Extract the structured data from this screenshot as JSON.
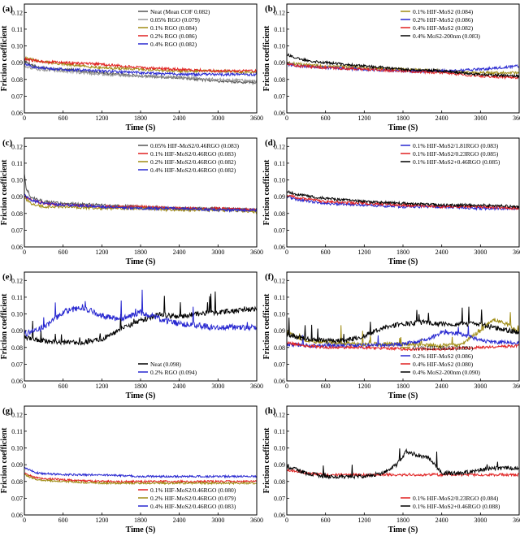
{
  "figure": {
    "background": "#ffffff"
  },
  "chart_data": [
    {
      "panel": "(a)",
      "type": "line",
      "xlabel": "Time (S)",
      "ylabel": "Friction coefficient",
      "xlim": [
        0,
        3600
      ],
      "ylim": [
        0.06,
        0.125
      ],
      "xticks": [
        0,
        600,
        1200,
        1800,
        2400,
        3000,
        3600
      ],
      "yticks": [
        0.06,
        0.07,
        0.08,
        0.09,
        0.1,
        0.11,
        0.12
      ],
      "legend_position": "top-right",
      "series": [
        {
          "name": "Neat (Mean COF 0.082)",
          "color": "#555555",
          "x": [
            0,
            200,
            600,
            1200,
            1800,
            2400,
            3000,
            3600
          ],
          "y": [
            0.091,
            0.087,
            0.086,
            0.084,
            0.082,
            0.081,
            0.079,
            0.078
          ],
          "noise": 0.0008
        },
        {
          "name": "0.05%  RGO (0.079)",
          "color": "#999999",
          "x": [
            0,
            200,
            600,
            1200,
            1800,
            2400,
            3000,
            3600
          ],
          "y": [
            0.088,
            0.086,
            0.085,
            0.083,
            0.082,
            0.081,
            0.08,
            0.079
          ],
          "noise": 0.0008
        },
        {
          "name": "0.1%  RGO (0.084)",
          "color": "#a08c14",
          "x": [
            0,
            200,
            600,
            1200,
            1800,
            2400,
            3000,
            3600
          ],
          "y": [
            0.093,
            0.091,
            0.089,
            0.087,
            0.086,
            0.085,
            0.085,
            0.084
          ],
          "noise": 0.0008
        },
        {
          "name": "0.2%  RGO (0.086)",
          "color": "#e02020",
          "x": [
            0,
            200,
            600,
            1200,
            1800,
            2400,
            3000,
            3600
          ],
          "y": [
            0.092,
            0.091,
            0.09,
            0.089,
            0.087,
            0.086,
            0.085,
            0.085
          ],
          "noise": 0.0008
        },
        {
          "name": "0.4%  RGO (0.082)",
          "color": "#2828d0",
          "x": [
            0,
            200,
            600,
            1200,
            1800,
            2400,
            3000,
            3600
          ],
          "y": [
            0.089,
            0.087,
            0.086,
            0.085,
            0.084,
            0.083,
            0.083,
            0.083
          ],
          "noise": 0.0008
        }
      ]
    },
    {
      "panel": "(b)",
      "type": "line",
      "xlabel": "Time (S)",
      "ylabel": "Friction coefficient",
      "xlim": [
        0,
        3600
      ],
      "ylim": [
        0.06,
        0.125
      ],
      "xticks": [
        0,
        600,
        1200,
        1800,
        2400,
        3000,
        3600
      ],
      "yticks": [
        0.06,
        0.07,
        0.08,
        0.09,
        0.1,
        0.11,
        0.12
      ],
      "legend_position": "top-right",
      "series": [
        {
          "name": "0.1% HIF-MoS2 (0.084)",
          "color": "#a08c14",
          "x": [
            0,
            200,
            600,
            1200,
            1800,
            2400,
            3000,
            3600
          ],
          "y": [
            0.09,
            0.089,
            0.088,
            0.087,
            0.086,
            0.085,
            0.084,
            0.084
          ],
          "noise": 0.0008
        },
        {
          "name": "0.2% HIF-MoS2 (0.086)",
          "color": "#2828d0",
          "x": [
            0,
            200,
            600,
            1200,
            1800,
            2400,
            3000,
            3600
          ],
          "y": [
            0.089,
            0.088,
            0.087,
            0.086,
            0.085,
            0.085,
            0.086,
            0.088
          ],
          "noise": 0.0008
        },
        {
          "name": "0.4% HIF-MoS2 (0.082)",
          "color": "#e02020",
          "x": [
            0,
            200,
            600,
            1200,
            1800,
            2400,
            3000,
            3600
          ],
          "y": [
            0.089,
            0.088,
            0.087,
            0.086,
            0.085,
            0.084,
            0.082,
            0.081
          ],
          "noise": 0.0008
        },
        {
          "name": "0.4% MoS2-200nm (0.083)",
          "color": "#000000",
          "x": [
            0,
            200,
            600,
            1200,
            1800,
            2400,
            3000,
            3600
          ],
          "y": [
            0.095,
            0.092,
            0.09,
            0.088,
            0.086,
            0.085,
            0.083,
            0.082
          ],
          "noise": 0.0008
        }
      ]
    },
    {
      "panel": "(c)",
      "type": "line",
      "xlabel": "Time (S)",
      "ylabel": "Friction coefficient",
      "xlim": [
        0,
        3600
      ],
      "ylim": [
        0.06,
        0.125
      ],
      "xticks": [
        0,
        600,
        1200,
        1800,
        2400,
        3000,
        3600
      ],
      "yticks": [
        0.06,
        0.07,
        0.08,
        0.09,
        0.1,
        0.11,
        0.12
      ],
      "legend_position": "top-right",
      "series": [
        {
          "name": "0.05% HIF-MoS2/0.46RGO (0.083)",
          "color": "#555555",
          "x": [
            0,
            30,
            100,
            300,
            600,
            1200,
            1800,
            2400,
            3000,
            3600
          ],
          "y": [
            0.104,
            0.095,
            0.09,
            0.087,
            0.086,
            0.085,
            0.084,
            0.083,
            0.083,
            0.082
          ],
          "noise": 0.0008
        },
        {
          "name": "0.1% HIF-MoS2/0.46RGO (0.083)",
          "color": "#e02020",
          "x": [
            0,
            100,
            300,
            600,
            1200,
            1800,
            2400,
            3000,
            3600
          ],
          "y": [
            0.09,
            0.088,
            0.086,
            0.085,
            0.084,
            0.084,
            0.083,
            0.083,
            0.082
          ],
          "noise": 0.0008
        },
        {
          "name": "0.2% HIF-MoS2/0.46RGO (0.082)",
          "color": "#a08c14",
          "x": [
            0,
            100,
            300,
            600,
            1200,
            1800,
            2400,
            3000,
            3600
          ],
          "y": [
            0.089,
            0.086,
            0.084,
            0.084,
            0.083,
            0.083,
            0.082,
            0.082,
            0.081
          ],
          "noise": 0.0008
        },
        {
          "name": "0.4% HIF-MoS2/0.46RGO (0.082)",
          "color": "#2828d0",
          "x": [
            0,
            100,
            300,
            600,
            1200,
            1800,
            2400,
            3000,
            3600
          ],
          "y": [
            0.091,
            0.088,
            0.086,
            0.085,
            0.084,
            0.083,
            0.083,
            0.082,
            0.082
          ],
          "noise": 0.0008
        }
      ]
    },
    {
      "panel": "(d)",
      "type": "line",
      "xlabel": "Time (S)",
      "ylabel": "Friction coefficient",
      "xlim": [
        0,
        3600
      ],
      "ylim": [
        0.06,
        0.125
      ],
      "xticks": [
        0,
        600,
        1200,
        1800,
        2400,
        3000,
        3600
      ],
      "yticks": [
        0.06,
        0.07,
        0.08,
        0.09,
        0.1,
        0.11,
        0.12
      ],
      "legend_position": "top-right",
      "series": [
        {
          "name": "0.1% HIF-MoS2/1.81RGO (0.083)",
          "color": "#2828d0",
          "x": [
            0,
            200,
            600,
            1200,
            1800,
            2400,
            3000,
            3600
          ],
          "y": [
            0.09,
            0.088,
            0.086,
            0.085,
            0.084,
            0.084,
            0.083,
            0.083
          ],
          "noise": 0.0008
        },
        {
          "name": "0.1% HIF-MoS2/0.23RGO (0.085)",
          "color": "#e02020",
          "x": [
            0,
            200,
            600,
            1200,
            1800,
            2400,
            3000,
            3600
          ],
          "y": [
            0.091,
            0.089,
            0.087,
            0.086,
            0.085,
            0.084,
            0.084,
            0.083
          ],
          "noise": 0.0008
        },
        {
          "name": "0.1% HIF-MoS2+0.46RGO (0.085)",
          "color": "#000000",
          "x": [
            0,
            200,
            600,
            1200,
            1800,
            2400,
            3000,
            3600
          ],
          "y": [
            0.093,
            0.091,
            0.089,
            0.087,
            0.086,
            0.085,
            0.085,
            0.084
          ],
          "noise": 0.0008
        }
      ]
    },
    {
      "panel": "(e)",
      "type": "line",
      "xlabel": "Time (S)",
      "ylabel": "Friction coefficient",
      "xlim": [
        0,
        3600
      ],
      "ylim": [
        0.06,
        0.125
      ],
      "xticks": [
        0,
        600,
        1200,
        1800,
        2400,
        3000,
        3600
      ],
      "yticks": [
        0.06,
        0.07,
        0.08,
        0.09,
        0.1,
        0.11,
        0.12
      ],
      "legend_position": "bottom-right",
      "series": [
        {
          "name": "Neat (0.098)",
          "color": "#000000",
          "x": [
            0,
            300,
            600,
            900,
            1200,
            1500,
            1800,
            2100,
            2400,
            2700,
            3000,
            3300,
            3600
          ],
          "y": [
            0.086,
            0.084,
            0.083,
            0.083,
            0.085,
            0.091,
            0.096,
            0.1,
            0.098,
            0.1,
            0.101,
            0.102,
            0.103
          ],
          "noise": 0.0015
        },
        {
          "name": "0.2%  RGO (0.094)",
          "color": "#2828d0",
          "x": [
            0,
            300,
            600,
            900,
            1200,
            1500,
            1800,
            2100,
            2400,
            2700,
            3000,
            3300,
            3600
          ],
          "y": [
            0.088,
            0.092,
            0.101,
            0.104,
            0.099,
            0.097,
            0.101,
            0.097,
            0.094,
            0.093,
            0.092,
            0.092,
            0.092
          ],
          "noise": 0.0018
        }
      ]
    },
    {
      "panel": "(f)",
      "type": "line",
      "xlabel": "Time (S)",
      "ylabel": "Friction coefficient",
      "xlim": [
        0,
        3600
      ],
      "ylim": [
        0.06,
        0.125
      ],
      "xticks": [
        0,
        600,
        1200,
        1800,
        2400,
        3000,
        3600
      ],
      "yticks": [
        0.06,
        0.07,
        0.08,
        0.09,
        0.1,
        0.11,
        0.12
      ],
      "legend_position": "bottom-right",
      "series": [
        {
          "name": "0.1% HIF-MoS2 (0.091)",
          "color": "#a08c14",
          "x": [
            0,
            300,
            600,
            1200,
            1800,
            2400,
            2700,
            3000,
            3200,
            3400,
            3600
          ],
          "y": [
            0.089,
            0.084,
            0.083,
            0.082,
            0.082,
            0.081,
            0.082,
            0.09,
            0.097,
            0.094,
            0.089
          ],
          "noise": 0.0012
        },
        {
          "name": "0.2% HIF-MoS2 (0.086)",
          "color": "#2828d0",
          "x": [
            0,
            300,
            600,
            1200,
            1800,
            2200,
            2400,
            2700,
            3000,
            3300,
            3600
          ],
          "y": [
            0.082,
            0.081,
            0.081,
            0.081,
            0.082,
            0.085,
            0.089,
            0.088,
            0.084,
            0.083,
            0.083
          ],
          "noise": 0.0012
        },
        {
          "name": "0.4% HIF-MoS2 (0.080)",
          "color": "#e02020",
          "x": [
            0,
            300,
            600,
            1200,
            1800,
            2400,
            3000,
            3600
          ],
          "y": [
            0.083,
            0.081,
            0.08,
            0.08,
            0.079,
            0.079,
            0.08,
            0.081
          ],
          "noise": 0.0008
        },
        {
          "name": "0.4% MoS2-200nm (0.090)",
          "color": "#000000",
          "x": [
            0,
            300,
            600,
            900,
            1200,
            1500,
            1800,
            2100,
            2400,
            2700,
            3000,
            3300,
            3600
          ],
          "y": [
            0.088,
            0.085,
            0.084,
            0.084,
            0.087,
            0.092,
            0.094,
            0.095,
            0.094,
            0.094,
            0.094,
            0.091,
            0.089
          ],
          "noise": 0.0015
        }
      ]
    },
    {
      "panel": "(g)",
      "type": "line",
      "xlabel": "Time (S)",
      "ylabel": "Friction coefficient",
      "xlim": [
        0,
        3600
      ],
      "ylim": [
        0.06,
        0.125
      ],
      "xticks": [
        0,
        600,
        1200,
        1800,
        2400,
        3000,
        3600
      ],
      "yticks": [
        0.06,
        0.07,
        0.08,
        0.09,
        0.1,
        0.11,
        0.12
      ],
      "legend_position": "bottom-right",
      "series": [
        {
          "name": "0.1% HIF-MoS2/0.46RGO (0.080)",
          "color": "#e02020",
          "x": [
            0,
            200,
            600,
            1200,
            1800,
            2400,
            3000,
            3600
          ],
          "y": [
            0.085,
            0.082,
            0.081,
            0.08,
            0.08,
            0.08,
            0.08,
            0.08
          ],
          "noise": 0.0006
        },
        {
          "name": "0.2% HIF-MoS2/0.46RGO (0.079)",
          "color": "#a08c14",
          "x": [
            0,
            200,
            600,
            1200,
            1800,
            2400,
            3000,
            3600
          ],
          "y": [
            0.084,
            0.081,
            0.08,
            0.079,
            0.079,
            0.079,
            0.079,
            0.079
          ],
          "noise": 0.0006
        },
        {
          "name": "0.4% HIF-MoS2/0.46RGO (0.083)",
          "color": "#2828d0",
          "x": [
            0,
            200,
            600,
            1200,
            1800,
            2400,
            3000,
            3600
          ],
          "y": [
            0.088,
            0.085,
            0.084,
            0.084,
            0.083,
            0.083,
            0.083,
            0.083
          ],
          "noise": 0.0006
        }
      ]
    },
    {
      "panel": "(h)",
      "type": "line",
      "xlabel": "Time (S)",
      "ylabel": "Friction coefficient",
      "xlim": [
        0,
        3600
      ],
      "ylim": [
        0.06,
        0.125
      ],
      "xticks": [
        0,
        600,
        1200,
        1800,
        2400,
        3000,
        3600
      ],
      "yticks": [
        0.06,
        0.07,
        0.08,
        0.09,
        0.1,
        0.11,
        0.12
      ],
      "legend_position": "bottom-right",
      "series": [
        {
          "name": "0.1% HIF-MoS2/0.23RGO (0.084)",
          "color": "#e02020",
          "x": [
            0,
            300,
            600,
            1200,
            1800,
            2400,
            3000,
            3600
          ],
          "y": [
            0.087,
            0.085,
            0.084,
            0.084,
            0.084,
            0.084,
            0.084,
            0.084
          ],
          "noise": 0.0008
        },
        {
          "name": "0.1% HIF-MoS2+0.46RGO (0.088)",
          "color": "#000000",
          "x": [
            0,
            300,
            600,
            900,
            1200,
            1500,
            1700,
            1850,
            2000,
            2200,
            2400,
            2700,
            3000,
            3300,
            3600
          ],
          "y": [
            0.089,
            0.085,
            0.083,
            0.083,
            0.083,
            0.085,
            0.09,
            0.098,
            0.096,
            0.094,
            0.085,
            0.085,
            0.087,
            0.088,
            0.088
          ],
          "noise": 0.0012
        }
      ]
    }
  ]
}
